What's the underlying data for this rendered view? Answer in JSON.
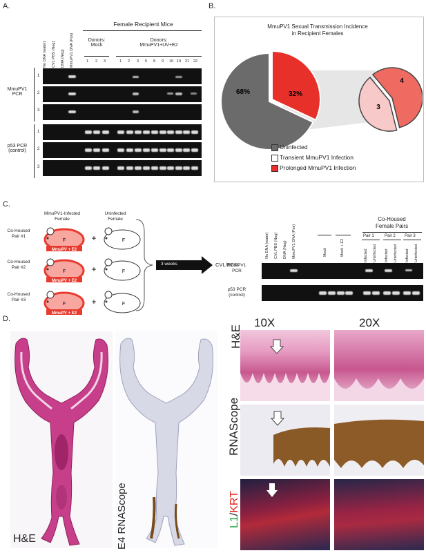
{
  "panels": {
    "A": "A.",
    "B": "B.",
    "C": "C.",
    "D": "D."
  },
  "panelA": {
    "header": "Female Recipient Mice",
    "lane_labels": [
      "No DNA (water)",
      "CVL PBS (Neg)",
      "DNA (Neg)",
      "MmuPV1 DNA (Pos)"
    ],
    "donors_mock": "Donors:\nMock",
    "donors_treat": "Donors:\nMmuPV1+UV+E2",
    "mock_numbers": [
      "1",
      "2",
      "3"
    ],
    "treat_numbers": [
      "1",
      "2",
      "3",
      "5",
      "8",
      "9",
      "16",
      "19",
      "21",
      "22"
    ],
    "pcr1_label": "MmuPV1\nPCR",
    "pcr2_label": "p53 PCR\n(control)",
    "row_numbers": [
      "1",
      "2",
      "3"
    ]
  },
  "panelB": {
    "title": "MmuPV1 Sexual Transmission Incidence\nin Recipient Females",
    "legend": [
      "Uninfected",
      "Transient MmuPV1 Infection",
      "Prolonged MmuPV1 Infection"
    ],
    "colors": {
      "uninfected": "#6b6b6b",
      "transient": "#f7c9c9",
      "prolonged": "#e8302b",
      "prolonged_light": "#ef6b62"
    },
    "chart_data": {
      "type": "pie",
      "title": "MmuPV1 Sexual Transmission Incidence in Recipient Females",
      "main": {
        "labels": [
          "Uninfected",
          "Infected"
        ],
        "values": [
          68,
          32
        ],
        "value_labels": [
          "68%",
          "32%"
        ]
      },
      "breakdown": {
        "labels": [
          "Prolonged MmuPV1 Infection",
          "Transient MmuPV1 Infection"
        ],
        "values": [
          4,
          3
        ],
        "value_labels": [
          "4",
          "3"
        ]
      }
    }
  },
  "panelC": {
    "infected_head": "MmuPV1-Infected\nFemale",
    "uninfected_head": "Uninfected\nFemale",
    "pairs": [
      "Co-Housed\nPair #1",
      "Co-Housed\nPair #2",
      "Co-Housed\nPair #3"
    ],
    "tag": "MmuPV + E2",
    "mouse_letter": "F",
    "plus": "+",
    "arrow_text": "3 weeks",
    "result": "CVL/PCR",
    "gel_header": "Co-Housed\nFemale Pairs",
    "lane_labels": [
      "No DNA (water)",
      "CVL PBS (Neg)",
      "DNA (Neg)",
      "MmuPV1 DNA (Pos)"
    ],
    "mock": "Mock",
    "mock_e2": "Mock + E2",
    "pair_labels": [
      "Pair 1",
      "Pair 2",
      "Pair 3"
    ],
    "pair_lanes": [
      "Infected",
      "Uninfected",
      "Infected",
      "Uninfected",
      "Infected",
      "Uninfected"
    ],
    "pcr1_label": "MmuPV1\nPCR",
    "pcr2_label": "p53 PCR\n(control)"
  },
  "panelD": {
    "mag_10x": "10X",
    "mag_20x": "20X",
    "he": "H&E",
    "rnascope": "RNAScope",
    "e4_rnascope": "E4 RNAScope",
    "l1": "L1",
    "slash": "/",
    "krt": "KRT"
  }
}
